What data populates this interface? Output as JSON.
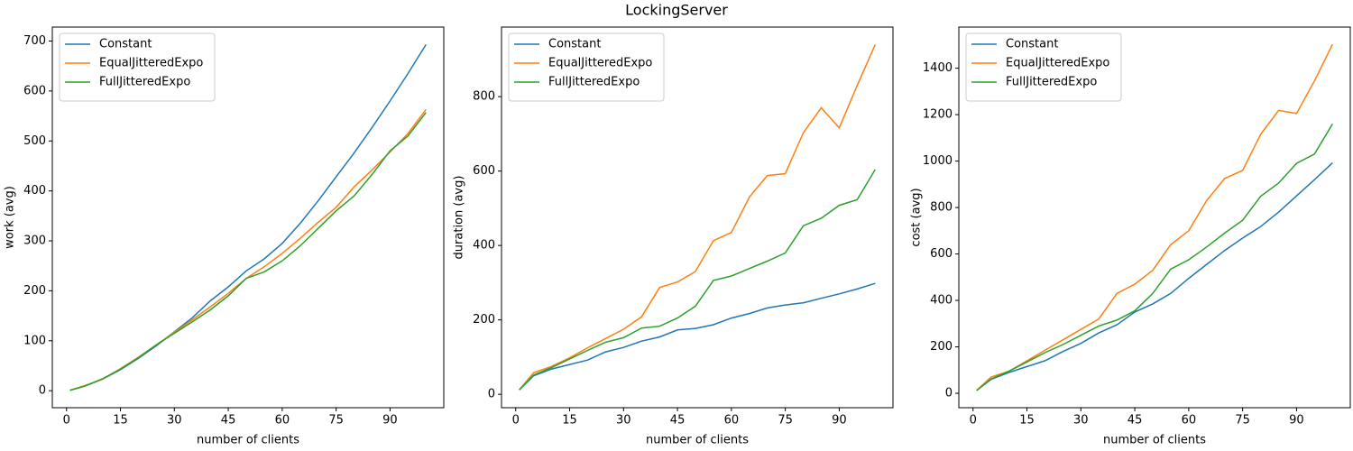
{
  "title": "LockingServer",
  "chart_data": [
    {
      "type": "line",
      "xlabel": "number of clients",
      "ylabel": "work (avg)",
      "legend": "upper left",
      "x": [
        1,
        5,
        10,
        15,
        20,
        25,
        30,
        35,
        40,
        45,
        50,
        55,
        60,
        65,
        70,
        75,
        80,
        85,
        90,
        95,
        100
      ],
      "xlim": [
        -3.95,
        104.95
      ],
      "xticks": [
        0,
        15,
        30,
        45,
        60,
        75,
        90
      ],
      "ylim": [
        -34,
        728
      ],
      "yticks": [
        0,
        100,
        200,
        300,
        400,
        500,
        600,
        700
      ],
      "series": [
        {
          "name": "Constant",
          "color": "#1f77b4",
          "values": [
            1,
            9,
            23,
            42,
            65,
            90,
            118,
            146,
            180,
            208,
            240,
            264,
            295,
            335,
            380,
            428,
            476,
            527,
            580,
            635,
            693
          ]
        },
        {
          "name": "EqualJitteredExpo",
          "color": "#ff7f0e",
          "values": [
            1,
            10,
            23,
            44,
            67,
            92,
            117,
            142,
            168,
            195,
            225,
            248,
            275,
            305,
            337,
            367,
            408,
            442,
            478,
            515,
            563
          ]
        },
        {
          "name": "FullJitteredExpo",
          "color": "#2ca02c",
          "values": [
            1,
            9,
            24,
            43,
            66,
            92,
            115,
            138,
            162,
            190,
            225,
            238,
            260,
            290,
            325,
            360,
            390,
            433,
            480,
            510,
            557
          ]
        }
      ]
    },
    {
      "type": "line",
      "xlabel": "number of clients",
      "ylabel": "duration (avg)",
      "legend": "upper left",
      "x": [
        1,
        5,
        10,
        15,
        20,
        25,
        30,
        35,
        40,
        45,
        50,
        55,
        60,
        65,
        70,
        75,
        80,
        85,
        90,
        95,
        100
      ],
      "xlim": [
        -3.95,
        104.95
      ],
      "xticks": [
        0,
        15,
        30,
        45,
        60,
        75,
        90
      ],
      "ylim": [
        -36,
        987
      ],
      "yticks": [
        0,
        200,
        400,
        600,
        800
      ],
      "series": [
        {
          "name": "Constant",
          "color": "#1f77b4",
          "values": [
            12,
            50,
            68,
            80,
            92,
            114,
            126,
            143,
            154,
            173,
            177,
            187,
            205,
            217,
            232,
            240,
            246,
            258,
            270,
            283,
            298
          ]
        },
        {
          "name": "EqualJitteredExpo",
          "color": "#ff7f0e",
          "values": [
            12,
            58,
            75,
            98,
            125,
            150,
            175,
            208,
            287,
            302,
            330,
            413,
            435,
            530,
            588,
            593,
            703,
            770,
            716,
            830,
            940
          ]
        },
        {
          "name": "FullJitteredExpo",
          "color": "#2ca02c",
          "values": [
            12,
            52,
            72,
            95,
            118,
            140,
            152,
            178,
            183,
            205,
            237,
            306,
            318,
            338,
            358,
            380,
            453,
            473,
            508,
            523,
            604
          ]
        }
      ]
    },
    {
      "type": "line",
      "xlabel": "number of clients",
      "ylabel": "cost (avg)",
      "legend": "upper left",
      "x": [
        1,
        5,
        10,
        15,
        20,
        25,
        30,
        35,
        40,
        45,
        50,
        55,
        60,
        65,
        70,
        75,
        80,
        85,
        90,
        95,
        100
      ],
      "xlim": [
        -3.95,
        104.95
      ],
      "xticks": [
        0,
        15,
        30,
        45,
        60,
        75,
        90
      ],
      "ylim": [
        -62,
        1577
      ],
      "yticks": [
        0,
        200,
        400,
        600,
        800,
        1000,
        1200,
        1400
      ],
      "series": [
        {
          "name": "Constant",
          "color": "#1f77b4",
          "values": [
            12,
            60,
            90,
            115,
            140,
            180,
            215,
            260,
            295,
            350,
            385,
            430,
            495,
            555,
            615,
            668,
            718,
            780,
            850,
            920,
            992
          ]
        },
        {
          "name": "EqualJitteredExpo",
          "color": "#ff7f0e",
          "values": [
            12,
            70,
            95,
            140,
            185,
            230,
            275,
            320,
            430,
            470,
            530,
            640,
            700,
            830,
            925,
            960,
            1115,
            1218,
            1205,
            1345,
            1503
          ]
        },
        {
          "name": "FullJitteredExpo",
          "color": "#2ca02c",
          "values": [
            12,
            62,
            95,
            135,
            175,
            210,
            250,
            290,
            315,
            355,
            430,
            535,
            575,
            630,
            690,
            745,
            848,
            905,
            990,
            1030,
            1160
          ]
        }
      ]
    }
  ]
}
